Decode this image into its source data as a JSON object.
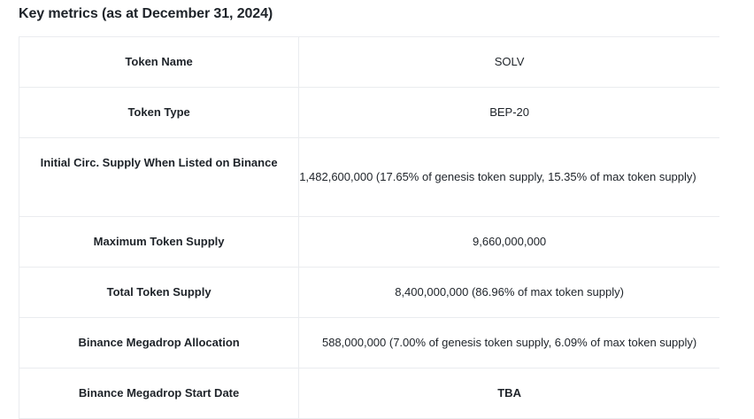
{
  "heading": "Key metrics (as at December 31, 2024)",
  "rows": [
    {
      "label": "Token Name",
      "value": "SOLV"
    },
    {
      "label": "Token Type",
      "value": "BEP-20"
    },
    {
      "label": "Initial Circ. Supply When Listed on Binance",
      "value": "1,482,600,000 (17.65% of genesis token supply, 15.35% of max token supply)"
    },
    {
      "label": "Maximum Token Supply",
      "value": "9,660,000,000"
    },
    {
      "label": "Total Token Supply",
      "value": "8,400,000,000 (86.96% of max token supply)"
    },
    {
      "label": "Binance Megadrop Allocation",
      "value": "588,000,000 (7.00% of genesis token supply, 6.09% of max token supply)"
    },
    {
      "label": "Binance Megadrop Start Date",
      "value": "TBA"
    }
  ]
}
